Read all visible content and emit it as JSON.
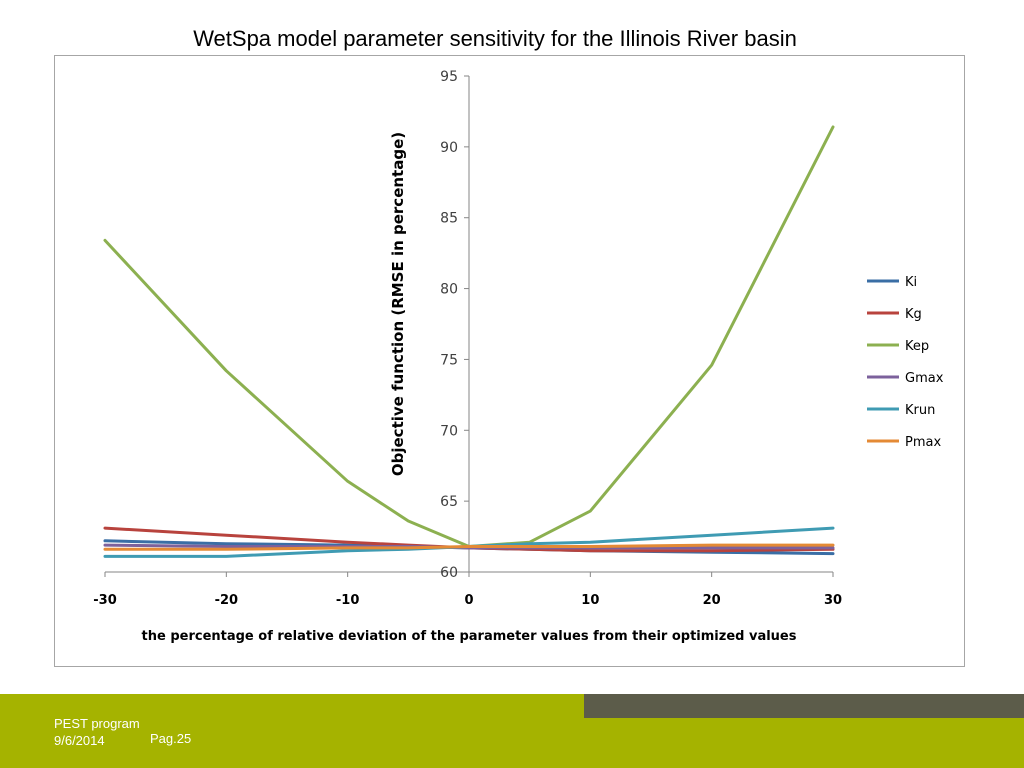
{
  "slide": {
    "title": "WetSpa model parameter sensitivity for the Illinois River basin"
  },
  "footer": {
    "program": "PEST program",
    "date": "9/6/2014",
    "page": "Pag.25"
  },
  "colors": {
    "footer_band": "#a5b300",
    "footer_accent": "#5c5c4a"
  },
  "chart_data": {
    "type": "line",
    "title": "",
    "xlabel": "the percentage of relative deviation of the parameter values from their optimized values",
    "ylabel": "Objective function (RMSE in percentage)",
    "xlim": [
      -30,
      30
    ],
    "ylim": [
      60,
      95
    ],
    "xticks": [
      -30,
      -20,
      -10,
      0,
      10,
      20,
      30
    ],
    "yticks": [
      60,
      65,
      70,
      75,
      80,
      85,
      90,
      95
    ],
    "grid": false,
    "legend_position": "right",
    "series": [
      {
        "name": "Ki",
        "color": "#3a6ea5",
        "x": [
          -30,
          -20,
          -10,
          -5,
          0,
          5,
          10,
          20,
          30
        ],
        "y": [
          62.2,
          62.0,
          61.9,
          61.8,
          61.7,
          61.6,
          61.5,
          61.4,
          61.3
        ]
      },
      {
        "name": "Kg",
        "color": "#b8433d",
        "x": [
          -30,
          -20,
          -10,
          -5,
          0,
          5,
          10,
          20,
          30
        ],
        "y": [
          63.1,
          62.6,
          62.1,
          61.9,
          61.7,
          61.6,
          61.5,
          61.5,
          61.6
        ]
      },
      {
        "name": "Kep",
        "color": "#8cb050",
        "x": [
          -30,
          -20,
          -10,
          -5,
          0,
          5,
          10,
          20,
          30
        ],
        "y": [
          83.4,
          74.2,
          66.4,
          63.6,
          61.8,
          62.1,
          64.3,
          74.6,
          91.4
        ]
      },
      {
        "name": "Gmax",
        "color": "#7c619c",
        "x": [
          -30,
          -20,
          -10,
          -5,
          0,
          5,
          10,
          20,
          30
        ],
        "y": [
          61.9,
          61.8,
          61.8,
          61.8,
          61.7,
          61.7,
          61.7,
          61.7,
          61.7
        ]
      },
      {
        "name": "Krun",
        "color": "#3f9bb3",
        "x": [
          -30,
          -20,
          -10,
          -5,
          0,
          5,
          10,
          20,
          30
        ],
        "y": [
          61.1,
          61.1,
          61.5,
          61.6,
          61.8,
          62.0,
          62.1,
          62.6,
          63.1
        ]
      },
      {
        "name": "Pmax",
        "color": "#e48a35",
        "x": [
          -30,
          -20,
          -10,
          -5,
          0,
          5,
          10,
          20,
          30
        ],
        "y": [
          61.6,
          61.6,
          61.7,
          61.7,
          61.8,
          61.8,
          61.8,
          61.9,
          61.9
        ]
      }
    ]
  }
}
